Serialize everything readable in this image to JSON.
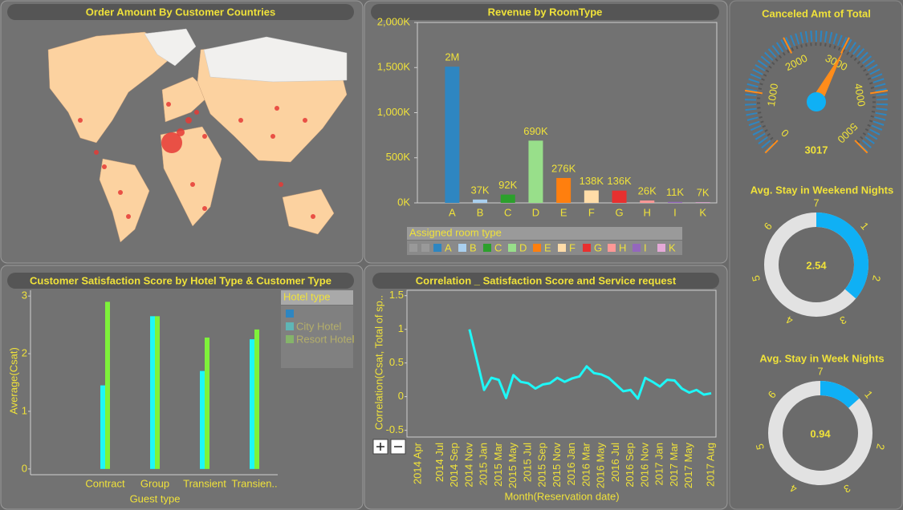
{
  "chart_data": [
    {
      "type": "map",
      "title": "Order Amount By Customer Countries"
    },
    {
      "type": "bar",
      "title": "Revenue by RoomType",
      "categories": [
        "A",
        "B",
        "C",
        "D",
        "E",
        "F",
        "G",
        "H",
        "I",
        "K"
      ],
      "values": [
        1510000,
        37000,
        92000,
        690000,
        276000,
        138000,
        136000,
        26000,
        11000,
        7000
      ],
      "value_labels": [
        "2M",
        "37K",
        "92K",
        "690K",
        "276K",
        "138K",
        "136K",
        "26K",
        "11K",
        "7K"
      ],
      "colors": [
        "#2e86c1",
        "#a9cfee",
        "#2ca02c",
        "#98df8a",
        "#ff7f0e",
        "#ffdca8",
        "#e8302f",
        "#ff9896",
        "#9467bd",
        "#e5a9d8"
      ],
      "ylim": [
        0,
        2000000
      ],
      "yticks": [
        {
          "value": 0,
          "label": "0K"
        },
        {
          "value": 500000,
          "label": "500K"
        },
        {
          "value": 1000000,
          "label": "1,000K"
        },
        {
          "value": 1500000,
          "label": "1,500K"
        },
        {
          "value": 2000000,
          "label": "2,000K"
        }
      ],
      "legend_title": "Assigned room type"
    },
    {
      "type": "gauge",
      "title": "Canceled Amt of Total",
      "value": 3017,
      "ylim": [
        0,
        5000
      ],
      "yticks": [
        0,
        1000,
        2000,
        3000,
        4000,
        5000
      ],
      "color": "#ff8c1a"
    },
    {
      "type": "donut",
      "title": "Avg. Stay in Weekend Nights",
      "value": 2.54,
      "ylim": [
        0,
        7
      ],
      "yticks": [
        1,
        2,
        3,
        4,
        5,
        6,
        7
      ],
      "color": "#0fb0f5"
    },
    {
      "type": "donut",
      "title": "Avg. Stay in Week Nights",
      "value": 0.94,
      "ylim": [
        0,
        7
      ],
      "yticks": [
        1,
        2,
        3,
        4,
        5,
        6,
        7
      ],
      "color": "#0fb0f5"
    },
    {
      "type": "grouped_bar",
      "title": "Customer Satisfaction Score by Hotel Type & Customer Type",
      "x_label": "Guest type",
      "y_label": "Average(Csat)",
      "categories": [
        "Contract",
        "Group",
        "Transient",
        "Transien.."
      ],
      "legend_title": "Hotel type",
      "series": [
        {
          "name": "City Hotel",
          "color": "#1ef7f7",
          "values": [
            1.45,
            2.65,
            1.7,
            2.25
          ]
        },
        {
          "name": "Resort Hotel",
          "color": "#7ef23a",
          "values": [
            2.9,
            2.65,
            2.28,
            2.42
          ]
        }
      ],
      "ylim": [
        -0.1,
        3.1
      ],
      "yticks": [
        0,
        1,
        2,
        3
      ]
    },
    {
      "type": "line",
      "title": "Correlation _ Satisfaction Score and Service request",
      "x_label": "Month(Reservation date)",
      "y_label": "Correlation(Csat, Total of sp..",
      "categories": [
        "2014 Apr",
        null,
        null,
        "2014 Jul",
        null,
        "2014 Sep",
        null,
        "2014 Nov",
        null,
        "2015 Jan",
        null,
        "2015 Mar",
        null,
        "2015 May",
        null,
        "2015 Jul",
        null,
        "2015 Sep",
        null,
        "2015 Nov",
        null,
        "2016 Jan",
        null,
        "2016 Mar",
        null,
        "2016 May",
        null,
        "2016 Jul",
        null,
        "2016 Sep",
        null,
        "2016 Nov",
        null,
        "2017 Jan",
        null,
        "2017 Mar",
        null,
        "2017 May",
        null,
        null,
        "2017 Aug"
      ],
      "color": "#1ef7f7",
      "values": [
        null,
        null,
        null,
        null,
        null,
        null,
        null,
        1.0,
        0.55,
        0.1,
        0.28,
        0.25,
        -0.02,
        0.32,
        0.22,
        0.2,
        0.12,
        0.18,
        0.2,
        0.28,
        0.22,
        0.27,
        0.3,
        0.45,
        0.35,
        0.33,
        0.28,
        0.18,
        0.08,
        0.1,
        -0.03,
        0.28,
        0.22,
        0.15,
        0.25,
        0.24,
        0.12,
        0.06,
        0.1,
        0.03,
        0.05
      ],
      "ylim": [
        -0.6,
        1.58
      ],
      "yticks": [
        -0.5,
        0,
        0.5,
        1,
        1.5
      ]
    }
  ]
}
